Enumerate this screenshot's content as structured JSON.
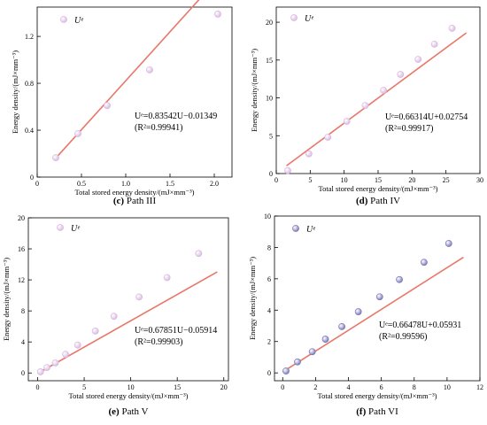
{
  "chart_data": [
    {
      "type": "scatter",
      "panel": "c",
      "caption_letter": "(c)",
      "caption_text": "Path III",
      "xlabel": "Total stored energy density/(mJ×mm⁻³)",
      "ylabel": "Energy density/(mJ×mm⁻³)",
      "xlim": [
        0,
        2.2
      ],
      "ylim": [
        0,
        1.45
      ],
      "xticks": [
        0,
        0.5,
        1.0,
        1.5,
        2.0
      ],
      "xtick_labels": [
        "0",
        "0.5",
        "1.0",
        "1.5",
        "2.0"
      ],
      "yticks": [
        0,
        0.4,
        0.8,
        1.2
      ],
      "ytick_labels": [
        "0",
        "0.4",
        "0.8",
        "1.2"
      ],
      "legend": "Uᵉ",
      "legend_position": "top-left",
      "points": [
        [
          0.21,
          0.165
        ],
        [
          0.46,
          0.37
        ],
        [
          0.79,
          0.61
        ],
        [
          1.27,
          0.915
        ],
        [
          2.04,
          1.39
        ]
      ],
      "fit": {
        "slope": 0.83542,
        "intercept": -0.01349,
        "x": [
          0.2,
          2.05
        ]
      },
      "equation": "Uᵉ=0.83542U−0.01349",
      "r2": "(R²=0.99941)",
      "marker_color": "#d7b6df"
    },
    {
      "type": "scatter",
      "panel": "d",
      "caption_letter": "(d)",
      "caption_text": "Path IV",
      "xlabel": "Total stored energy density/(mJ×mm⁻³)",
      "ylabel": "Energy density/(mJ×mm⁻³)",
      "xlim": [
        0,
        30
      ],
      "ylim": [
        0,
        22
      ],
      "xticks": [
        0,
        5,
        10,
        15,
        20,
        25,
        30
      ],
      "xtick_labels": [
        "0",
        "5",
        "10",
        "15",
        "20",
        "25",
        "30"
      ],
      "yticks": [
        0,
        5,
        10,
        15,
        20
      ],
      "ytick_labels": [
        "0",
        "5",
        "10",
        "15",
        "20"
      ],
      "legend": "Uᵉ",
      "legend_position": "top-left",
      "points": [
        [
          1.7,
          0.4
        ],
        [
          4.8,
          2.6
        ],
        [
          7.6,
          4.8
        ],
        [
          10.4,
          6.9
        ],
        [
          13.1,
          9.0
        ],
        [
          15.8,
          11.0
        ],
        [
          18.3,
          13.1
        ],
        [
          20.9,
          15.1
        ],
        [
          23.3,
          17.1
        ],
        [
          25.9,
          19.2
        ]
      ],
      "fit": {
        "slope": 0.66314,
        "intercept": 0.02754,
        "x": [
          1.5,
          28.0
        ]
      },
      "equation": "Uᵉ=0.66314U+0.02754",
      "r2": "(R²=0.99917)",
      "marker_color": "#d7b6df"
    },
    {
      "type": "scatter",
      "panel": "e",
      "caption_letter": "(e)",
      "caption_text": "Path V",
      "xlabel": "Total stored energy density/(mJ×mm⁻³)",
      "ylabel": "Energy density/(mJ×mm⁻³)",
      "xlim": [
        -1,
        20.5
      ],
      "ylim": [
        -1,
        20
      ],
      "xticks": [
        0,
        5,
        10,
        15,
        20
      ],
      "xtick_labels": [
        "0",
        "5",
        "10",
        "15",
        "20"
      ],
      "yticks": [
        0,
        4,
        8,
        12,
        16,
        20
      ],
      "ytick_labels": [
        "0",
        "4",
        "8",
        "12",
        "16",
        "20"
      ],
      "legend": "Uᵉ",
      "legend_position": "top-left",
      "points": [
        [
          0.3,
          0.15
        ],
        [
          1.0,
          0.7
        ],
        [
          1.9,
          1.3
        ],
        [
          3.0,
          2.4
        ],
        [
          4.3,
          3.6
        ],
        [
          6.2,
          5.4
        ],
        [
          8.2,
          7.3
        ],
        [
          10.9,
          9.8
        ],
        [
          13.9,
          12.3
        ],
        [
          17.3,
          15.4
        ]
      ],
      "fit": {
        "slope": 0.67851,
        "intercept": -0.05914,
        "x": [
          0,
          19.3
        ]
      },
      "equation": "Uᵉ=0.67851U−0.05914",
      "r2": "(R²=0.99903)",
      "marker_color": "#d7b6df"
    },
    {
      "type": "scatter",
      "panel": "f",
      "caption_letter": "(f)",
      "caption_text": "Path VI",
      "xlabel": "Total stored energy density/(mJ×mm⁻³)",
      "ylabel": "Energy density/(mJ×mm⁻³)",
      "xlim": [
        -0.5,
        12
      ],
      "ylim": [
        -0.5,
        10
      ],
      "xticks": [
        0,
        2,
        4,
        6,
        8,
        10,
        12
      ],
      "xtick_labels": [
        "0",
        "2",
        "4",
        "6",
        "8",
        "10",
        "12"
      ],
      "yticks": [
        0,
        2,
        4,
        6,
        8,
        10
      ],
      "ytick_labels": [
        "0",
        "2",
        "4",
        "6",
        "8",
        "10"
      ],
      "legend": "Uᵉ",
      "legend_position": "top-left",
      "points": [
        [
          0.2,
          0.12
        ],
        [
          0.9,
          0.7
        ],
        [
          1.8,
          1.35
        ],
        [
          2.6,
          2.15
        ],
        [
          3.6,
          2.95
        ],
        [
          4.6,
          3.9
        ],
        [
          5.9,
          4.85
        ],
        [
          7.1,
          5.95
        ],
        [
          8.6,
          7.05
        ],
        [
          10.1,
          8.25
        ]
      ],
      "fit": {
        "slope": 0.66478,
        "intercept": 0.05931,
        "x": [
          0,
          11.0
        ]
      },
      "equation": "Uᵉ=0.66478U+0.05931",
      "r2": "(R²=0.99596)",
      "marker_color": "#7472b5"
    }
  ],
  "style": {
    "fit_color": "#e8776a",
    "axis_color": "#000000"
  }
}
